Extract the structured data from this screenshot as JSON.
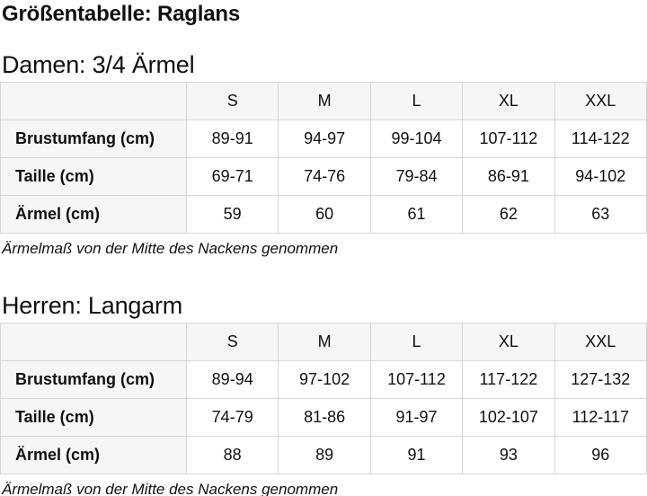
{
  "page": {
    "title": "Größentabelle: Raglans"
  },
  "colors": {
    "background": "#ffffff",
    "table_border": "#d6d6d6",
    "header_cell_bg": "#f5f6f6",
    "text": "#0f1111"
  },
  "sections": [
    {
      "heading": "Damen: 3/4 Ärmel",
      "note": "Ärmelmaß von der Mitte des Nackens genommen",
      "table": {
        "col_headers": [
          "",
          "S",
          "M",
          "L",
          "XL",
          "XXL"
        ],
        "rows": [
          {
            "label": "Brustumfang (cm)",
            "values": [
              "89-91",
              "94-97",
              "99-104",
              "107-112",
              "114-122"
            ]
          },
          {
            "label": "Taille (cm)",
            "values": [
              "69-71",
              "74-76",
              "79-84",
              "86-91",
              "94-102"
            ]
          },
          {
            "label": "Ärmel (cm)",
            "values": [
              "59",
              "60",
              "61",
              "62",
              "63"
            ]
          }
        ]
      }
    },
    {
      "heading": "Herren: Langarm",
      "note": "Ärmelmaß von der Mitte des Nackens genommen",
      "table": {
        "col_headers": [
          "",
          "S",
          "M",
          "L",
          "XL",
          "XXL"
        ],
        "rows": [
          {
            "label": "Brustumfang (cm)",
            "values": [
              "89-94",
              "97-102",
              "107-112",
              "117-122",
              "127-132"
            ]
          },
          {
            "label": "Taille (cm)",
            "values": [
              "74-79",
              "81-86",
              "91-97",
              "102-107",
              "112-117"
            ]
          },
          {
            "label": "Ärmel (cm)",
            "values": [
              "88",
              "89",
              "91",
              "93",
              "96"
            ]
          }
        ]
      }
    }
  ]
}
